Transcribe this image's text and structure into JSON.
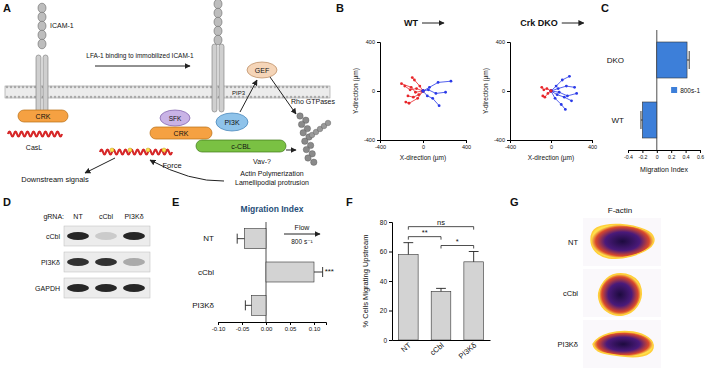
{
  "panel_labels": [
    "A",
    "B",
    "C",
    "D",
    "E",
    "F",
    "G"
  ],
  "diagram": {
    "nodes": [
      "ICAM-1",
      "LFA-1 binding to immobilized ICAM-1",
      "CRK",
      "CasL",
      "SFK",
      "CRK",
      "PI3K",
      "GEF",
      "PIP3",
      "c-CBL",
      "Rho GTPases",
      "Vav-?",
      "Force",
      "Downstream signals",
      "Actin Polymerization",
      "Lamellipodial protrusion"
    ]
  },
  "chart_data": [
    {
      "type": "line",
      "title": "WT",
      "xlabel": "X-direction (µm)",
      "ylabel": "Y-direction (µm)",
      "xlim": [
        -400,
        400
      ],
      "ylim": [
        -400,
        400
      ],
      "xticks": [
        -400,
        0,
        400
      ],
      "yticks": [
        -400,
        0,
        400
      ],
      "marker": "circle",
      "series": [
        {
          "color": "#e8262a",
          "x": [
            0,
            -60,
            -120,
            -170
          ],
          "values": [
            0,
            20,
            10,
            40
          ]
        },
        {
          "color": "#e8262a",
          "x": [
            0,
            -40,
            -90,
            -140
          ],
          "values": [
            0,
            -30,
            -50,
            -40
          ]
        },
        {
          "color": "#e8262a",
          "x": [
            0,
            -70,
            -110,
            -200
          ],
          "values": [
            0,
            -10,
            30,
            60
          ]
        },
        {
          "color": "#e8262a",
          "x": [
            0,
            -30,
            -80,
            -100
          ],
          "values": [
            0,
            40,
            90,
            110
          ]
        },
        {
          "color": "#e8262a",
          "x": [
            0,
            -50,
            -130,
            -160
          ],
          "values": [
            0,
            -60,
            -100,
            -90
          ]
        },
        {
          "color": "#2a3ae8",
          "x": [
            0,
            50,
            120,
            210
          ],
          "values": [
            0,
            10,
            -20,
            -10
          ]
        },
        {
          "color": "#2a3ae8",
          "x": [
            0,
            60,
            140,
            260
          ],
          "values": [
            0,
            30,
            70,
            80
          ]
        },
        {
          "color": "#2a3ae8",
          "x": [
            0,
            40,
            90,
            150
          ],
          "values": [
            0,
            -40,
            -60,
            -120
          ]
        }
      ]
    },
    {
      "type": "line",
      "title": "Crk DKO",
      "xlabel": "X-direction (µm)",
      "ylabel": "Y-direction (µm)",
      "xlim": [
        -400,
        400
      ],
      "ylim": [
        -400,
        400
      ],
      "xticks": [
        -400,
        0,
        400
      ],
      "yticks": [
        -400,
        0,
        400
      ],
      "marker": "circle",
      "series": [
        {
          "color": "#2a3ae8",
          "x": [
            0,
            70,
            150,
            230
          ],
          "values": [
            0,
            20,
            40,
            30
          ]
        },
        {
          "color": "#2a3ae8",
          "x": [
            0,
            60,
            130,
            200
          ],
          "values": [
            0,
            -30,
            -50,
            -80
          ]
        },
        {
          "color": "#2a3ae8",
          "x": [
            0,
            50,
            110,
            180
          ],
          "values": [
            0,
            40,
            90,
            120
          ]
        },
        {
          "color": "#2a3ae8",
          "x": [
            0,
            80,
            160,
            250
          ],
          "values": [
            0,
            -10,
            -40,
            -20
          ]
        },
        {
          "color": "#2a3ae8",
          "x": [
            0,
            40,
            100,
            140
          ],
          "values": [
            0,
            -60,
            -110,
            -150
          ]
        },
        {
          "color": "#e8262a",
          "x": [
            0,
            -40,
            -70,
            -90
          ],
          "values": [
            0,
            20,
            10,
            30
          ]
        },
        {
          "color": "#e8262a",
          "x": [
            0,
            -30,
            -60,
            -80
          ],
          "values": [
            0,
            -20,
            -50,
            -40
          ]
        }
      ]
    },
    {
      "type": "bar",
      "orientation": "horizontal",
      "categories": [
        "DKO",
        "WT"
      ],
      "xlabel": "Migration Index",
      "xlim": [
        -0.4,
        0.6
      ],
      "xticks": [
        -0.4,
        -0.2,
        0,
        0.2,
        0.4,
        0.6
      ],
      "legend": "right",
      "series": [
        {
          "name": "800s-1",
          "color": "#3d7fd9",
          "values": [
            0.42,
            -0.2
          ],
          "errors": [
            0.03,
            0.02
          ]
        }
      ]
    },
    {
      "type": "bar",
      "orientation": "horizontal",
      "title": "Migration Index",
      "categories": [
        "NT",
        "cCbl",
        "PI3Kδ"
      ],
      "values": [
        -0.045,
        0.1,
        -0.03
      ],
      "errors": [
        0.015,
        0.018,
        0.013
      ],
      "color": "#d3d3d3",
      "xlim": [
        -0.1,
        0.125
      ],
      "xticks": [
        {
          "value": -0.1,
          "label": "-0.10"
        },
        -0.05,
        {
          "value": 0,
          "label": "0.00"
        },
        0.05,
        {
          "value": 0.1,
          "label": "0.10"
        }
      ],
      "annotations": [
        "Flow",
        "800 s⁻¹"
      ],
      "significance": [
        {
          "text": "***",
          "category": 1
        }
      ]
    },
    {
      "type": "bar",
      "categories": [
        "NT",
        "cCbl",
        "PI3Kδ"
      ],
      "values": [
        58,
        33,
        53
      ],
      "errors": [
        8,
        2,
        7
      ],
      "color": "#d3d3d3",
      "ylabel": "% Cells Migrating Upstream",
      "ylim": [
        0,
        80
      ],
      "yticks": [
        0,
        20,
        40,
        60,
        80
      ],
      "significance": [
        {
          "text": "ns",
          "from": 0,
          "to": 2
        },
        {
          "text": "**",
          "from": 0,
          "to": 1
        },
        {
          "text": "*",
          "from": 1,
          "to": 2
        }
      ]
    }
  ],
  "blot": {
    "label": "gRNA:",
    "lanes": [
      "NT",
      "cCbl",
      "PI3Kδ"
    ],
    "rows": [
      {
        "label": "cCbl",
        "intensity": [
          0.9,
          0.15,
          0.9
        ]
      },
      {
        "label": "PI3Kδ",
        "intensity": [
          0.85,
          0.85,
          0.3
        ]
      },
      {
        "label": "GAPDH",
        "intensity": [
          0.9,
          0.9,
          0.9
        ]
      }
    ]
  },
  "images": {
    "title": "F-actin",
    "rows": [
      "NT",
      "cCbl",
      "PI3Kδ"
    ]
  }
}
